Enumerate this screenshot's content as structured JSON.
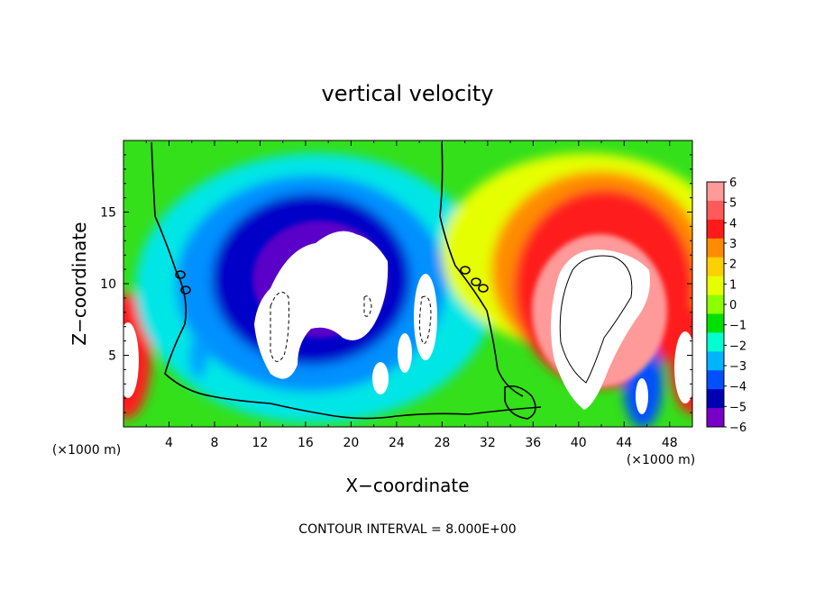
{
  "chart_data": {
    "type": "heatmap",
    "title": "vertical velocity",
    "xlabel": "X−coordinate",
    "ylabel": "Z−coordinate",
    "x_unit_label": "(×1000 m)",
    "y_unit_label": "(×1000 m)",
    "xlim": [
      0,
      50
    ],
    "ylim": [
      0,
      20
    ],
    "x_ticks": [
      4,
      8,
      12,
      16,
      20,
      24,
      28,
      32,
      36,
      40,
      44,
      48
    ],
    "x_tick_labels": [
      "4",
      "8",
      "12",
      "16",
      "20",
      "24",
      "28",
      "32",
      "36",
      "40",
      "44",
      "48"
    ],
    "y_ticks": [
      5,
      10,
      15
    ],
    "y_tick_labels": [
      "5",
      "10",
      "15"
    ],
    "colorbar": {
      "ticks": [
        6,
        5,
        4,
        3,
        2,
        1,
        0,
        -1,
        -2,
        -3,
        -4,
        -5,
        -6
      ],
      "labels": [
        "6",
        "5",
        "4",
        "3",
        "2",
        "1",
        "0",
        "−1",
        "−2",
        "−3",
        "−4",
        "−5",
        "−6"
      ],
      "colors": [
        "#ff9a9a",
        "#ff5a5a",
        "#ff1a1a",
        "#ff8c00",
        "#ffd000",
        "#e6ff00",
        "#8cff00",
        "#00e000",
        "#00ffd0",
        "#00b4ff",
        "#0050ff",
        "#0000b4",
        "#7800c8"
      ]
    },
    "contour_interval_text": "CONTOUR INTERVAL = 8.000E+00"
  }
}
